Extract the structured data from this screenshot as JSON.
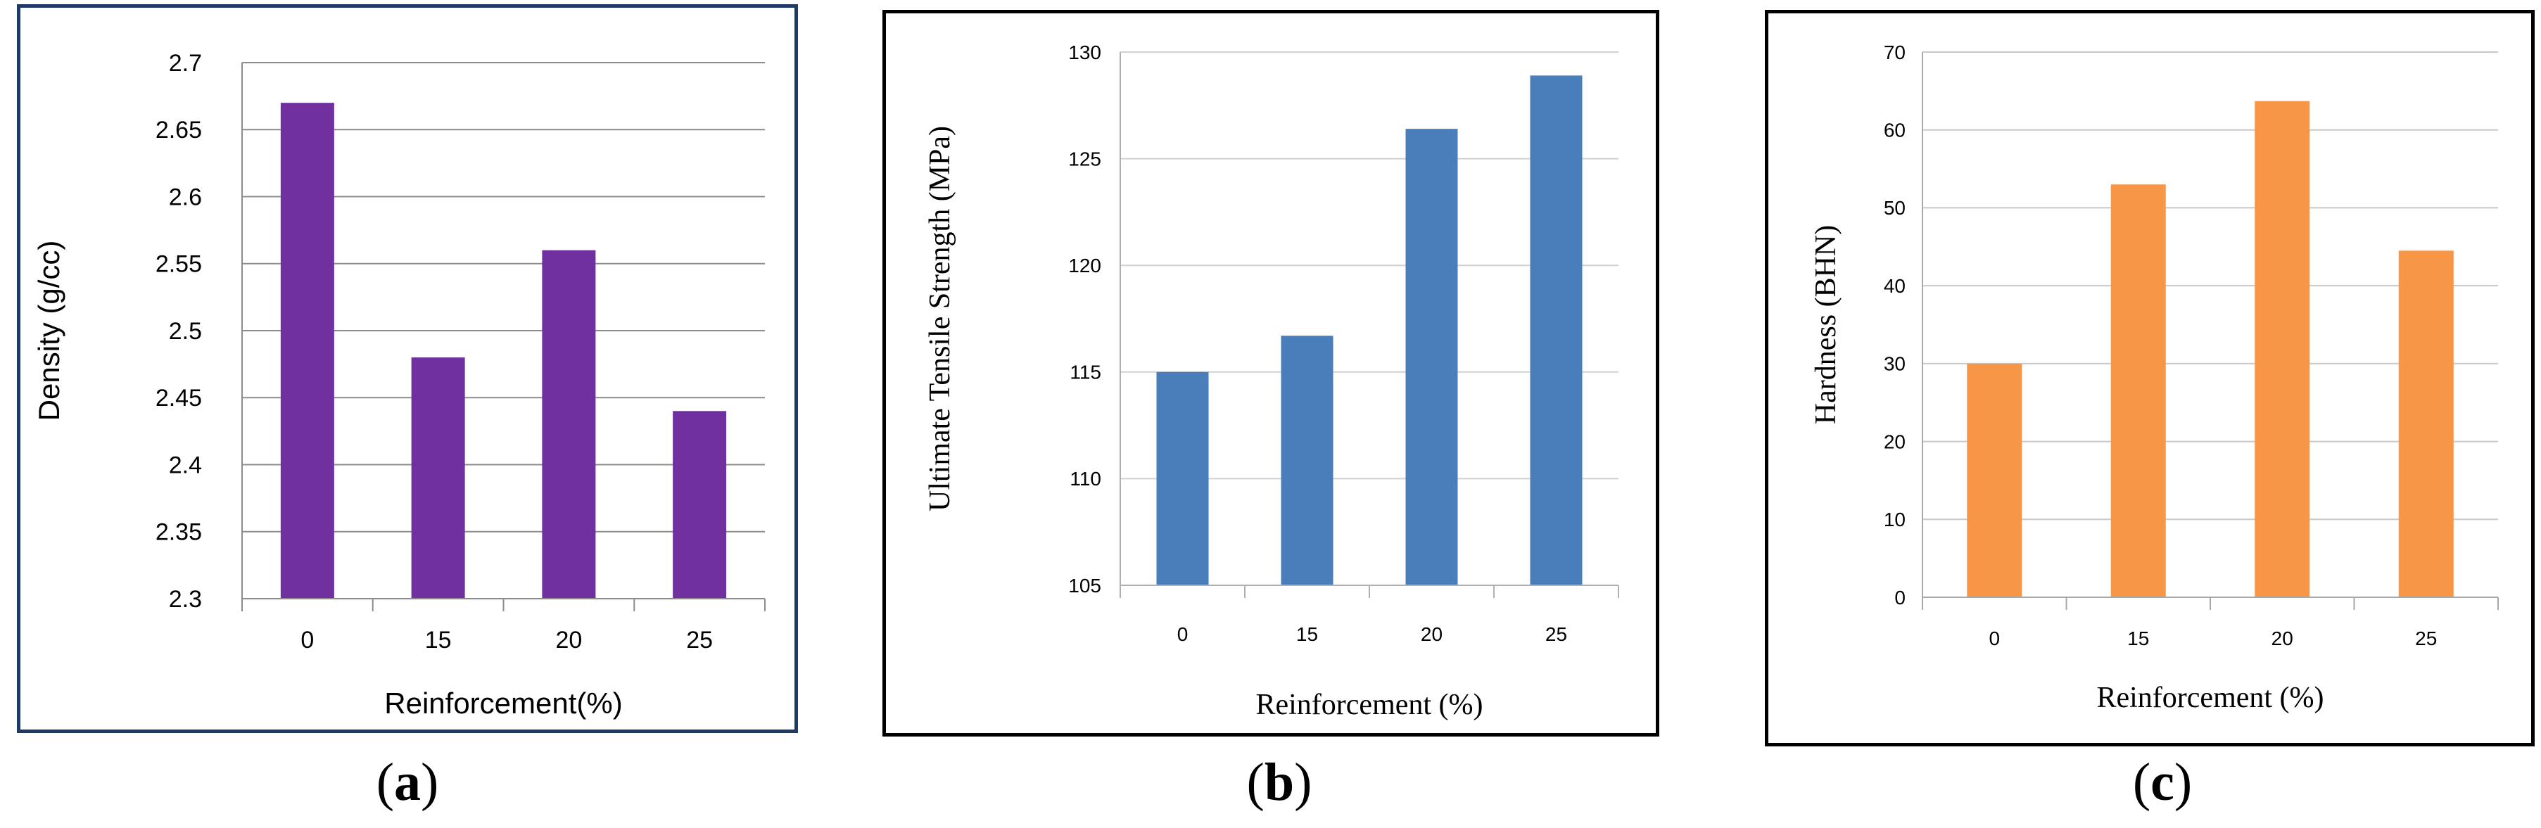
{
  "chart_data": [
    {
      "type": "bar",
      "categories": [
        "0",
        "15",
        "20",
        "25"
      ],
      "values": [
        2.67,
        2.48,
        2.56,
        2.44
      ],
      "xlabel": "Reinforcement(%)",
      "ylabel": "Density (g/cc)",
      "ylim": [
        2.3,
        2.7
      ],
      "yticks": [
        "2.3",
        "2.35",
        "2.4",
        "2.45",
        "2.5",
        "2.55",
        "2.6",
        "2.65",
        "2.7"
      ],
      "grid": true,
      "color": "#7030a0"
    },
    {
      "type": "bar",
      "categories": [
        "0",
        "15",
        "20",
        "25"
      ],
      "values": [
        115,
        116.7,
        126.4,
        128.9
      ],
      "xlabel": "Reinforcement (%)",
      "ylabel": "Ultimate Tensile Strength (MPa)",
      "ylim": [
        105,
        130
      ],
      "yticks": [
        "105",
        "110",
        "115",
        "120",
        "125",
        "130"
      ],
      "grid": true,
      "color": "#4a7ebb"
    },
    {
      "type": "bar",
      "categories": [
        "0",
        "15",
        "20",
        "25"
      ],
      "values": [
        30,
        53,
        63.7,
        44.5
      ],
      "xlabel": "Reinforcement (%)",
      "ylabel": "Hardness (BHN)",
      "ylim": [
        0,
        70
      ],
      "yticks": [
        "0",
        "10",
        "20",
        "30",
        "40",
        "50",
        "60",
        "70"
      ],
      "grid": true,
      "color": "#f79646"
    }
  ],
  "captions": [
    {
      "open": "(",
      "letter": "a",
      "close": ")"
    },
    {
      "open": "(",
      "letter": "b",
      "close": ")"
    },
    {
      "open": "(",
      "letter": "c",
      "close": ")"
    }
  ]
}
